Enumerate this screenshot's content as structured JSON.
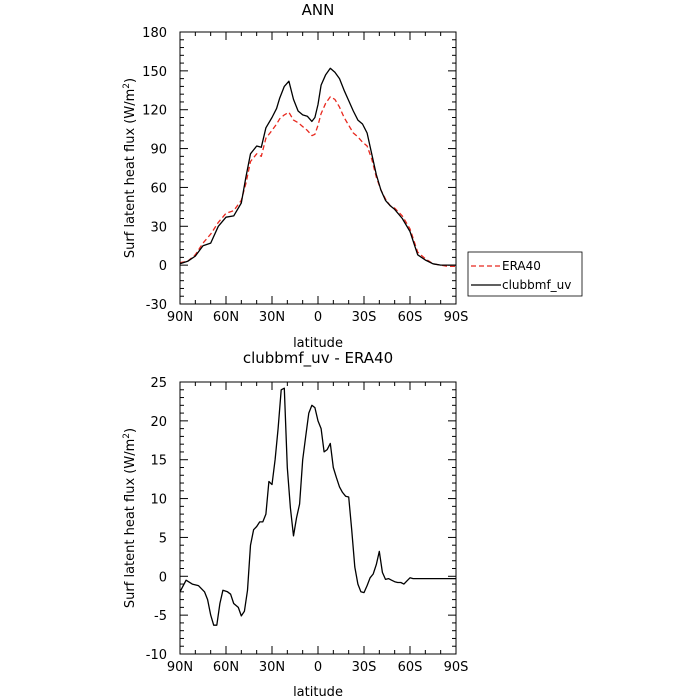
{
  "chart_data": [
    {
      "type": "line",
      "title": "ANN",
      "xlabel": "latitude",
      "ylabel": "Surf latent heat flux (W/m",
      "ylabel_sup": "2",
      "ylabel_end": ")",
      "xlim": [
        90,
        -90
      ],
      "ylim": [
        -30,
        180
      ],
      "xticks": [
        90,
        60,
        30,
        0,
        -30,
        -60,
        -90
      ],
      "xtick_labels": [
        "90N",
        "60N",
        "30N",
        "0",
        "30S",
        "60S",
        "90S"
      ],
      "yticks": [
        -30,
        0,
        30,
        60,
        90,
        120,
        150,
        180
      ],
      "ytick_labels": [
        "-30",
        "0",
        "30",
        "60",
        "90",
        "120",
        "150",
        "180"
      ],
      "legend": "right",
      "series": [
        {
          "name": "ERA40",
          "color": "#e8281e",
          "dash": "dashed",
          "x": [
            90,
            85,
            80,
            75,
            70,
            65,
            60,
            55,
            50,
            47,
            44,
            40,
            37,
            34,
            30,
            27,
            25,
            22,
            19,
            16,
            13,
            10,
            7,
            4,
            2,
            0,
            -2,
            -5,
            -8,
            -11,
            -14,
            -17,
            -20,
            -23,
            -26,
            -29,
            -32,
            -35,
            -38,
            -41,
            -44,
            -47,
            -50,
            -55,
            -60,
            -65,
            -70,
            -75,
            -80,
            -85,
            -90
          ],
          "y": [
            2,
            3,
            8,
            17,
            24,
            33,
            40,
            42,
            50,
            63,
            80,
            86,
            84,
            98,
            104,
            109,
            113,
            116,
            118,
            112,
            110,
            107,
            104,
            100,
            101,
            108,
            117,
            125,
            130,
            128,
            122,
            114,
            108,
            102,
            99,
            95,
            92,
            82,
            68,
            58,
            51,
            46,
            44,
            38,
            28,
            10,
            5,
            1,
            0,
            -1,
            -1
          ]
        },
        {
          "name": "clubbmf_uv",
          "color": "#000000",
          "dash": "solid",
          "x": [
            90,
            85,
            80,
            75,
            70,
            65,
            60,
            55,
            50,
            47,
            44,
            40,
            37,
            34,
            30,
            27,
            25,
            22,
            19,
            16,
            13,
            10,
            7,
            4,
            2,
            0,
            -2,
            -5,
            -8,
            -11,
            -14,
            -17,
            -20,
            -23,
            -26,
            -29,
            -32,
            -35,
            -38,
            -41,
            -44,
            -47,
            -50,
            -55,
            -60,
            -65,
            -70,
            -75,
            -80,
            -85,
            -90
          ],
          "y": [
            1,
            3,
            7,
            15,
            17,
            30,
            37,
            38,
            48,
            68,
            86,
            92,
            91,
            106,
            114,
            121,
            129,
            138,
            142,
            128,
            119,
            116,
            115,
            111,
            114,
            124,
            139,
            147,
            152,
            149,
            144,
            135,
            127,
            119,
            112,
            109,
            102,
            86,
            70,
            58,
            50,
            46,
            43,
            36,
            26,
            8,
            4,
            1,
            0,
            0,
            0
          ]
        }
      ]
    },
    {
      "type": "line",
      "title": "clubbmf_uv - ERA40",
      "xlabel": "latitude",
      "ylabel": "Surf latent heat flux (W/m",
      "ylabel_sup": "2",
      "ylabel_end": ")",
      "xlim": [
        90,
        -90
      ],
      "ylim": [
        -10,
        25
      ],
      "xticks": [
        90,
        60,
        30,
        0,
        -30,
        -60,
        -90
      ],
      "xtick_labels": [
        "90N",
        "60N",
        "30N",
        "0",
        "30S",
        "60S",
        "90S"
      ],
      "yticks": [
        -10,
        -5,
        0,
        5,
        10,
        15,
        20,
        25
      ],
      "ytick_labels": [
        "-10",
        "-5",
        "0",
        "5",
        "10",
        "15",
        "20",
        "25"
      ],
      "series": [
        {
          "color": "#000000",
          "dash": "solid",
          "x": [
            90,
            86,
            82,
            78,
            74,
            72,
            70,
            68,
            66,
            64,
            62,
            59,
            57,
            55,
            52,
            50,
            48,
            46,
            44,
            42,
            40,
            38,
            36,
            34,
            32,
            30,
            28,
            26,
            24,
            22,
            20,
            18,
            16,
            14,
            12,
            10,
            8,
            6,
            4,
            2,
            0,
            -2,
            -4,
            -6,
            -8,
            -10,
            -12,
            -14,
            -16,
            -18,
            -20,
            -22,
            -24,
            -26,
            -28,
            -30,
            -32,
            -34,
            -36,
            -38,
            -40,
            -42,
            -44,
            -46,
            -48,
            -50,
            -52,
            -54,
            -56,
            -58,
            -60,
            -62,
            -64,
            -66,
            -68,
            -70,
            -72,
            -74,
            -76,
            -78,
            -80,
            -82,
            -84,
            -86,
            -88,
            -90
          ],
          "y": [
            -2.0,
            -0.5,
            -1.0,
            -1.2,
            -2.0,
            -3.0,
            -5.0,
            -6.3,
            -6.3,
            -3.5,
            -1.8,
            -2.0,
            -2.3,
            -3.5,
            -4.0,
            -5.1,
            -4.5,
            -1.8,
            4.0,
            6.0,
            6.4,
            7.0,
            7.0,
            8.0,
            12.2,
            11.8,
            15.0,
            19.0,
            24.0,
            24.2,
            14.0,
            8.8,
            5.2,
            7.5,
            9.3,
            15.0,
            18.0,
            21.0,
            22.0,
            21.7,
            20.0,
            19.0,
            16.0,
            16.3,
            17.1,
            14.0,
            12.7,
            11.5,
            10.8,
            10.3,
            10.2,
            6.0,
            1.2,
            -1.0,
            -2.0,
            -2.1,
            -1.2,
            -0.2,
            0.3,
            1.5,
            3.2,
            0.5,
            -0.4,
            -0.3,
            -0.5,
            -0.7,
            -0.8,
            -0.8,
            -1.0,
            -0.6,
            -0.2,
            -0.3,
            -0.3,
            -0.3,
            -0.3,
            -0.3,
            -0.3,
            -0.3,
            -0.3,
            -0.3,
            -0.3,
            -0.3,
            -0.3,
            -0.3,
            -0.3,
            -0.3
          ]
        }
      ]
    }
  ]
}
